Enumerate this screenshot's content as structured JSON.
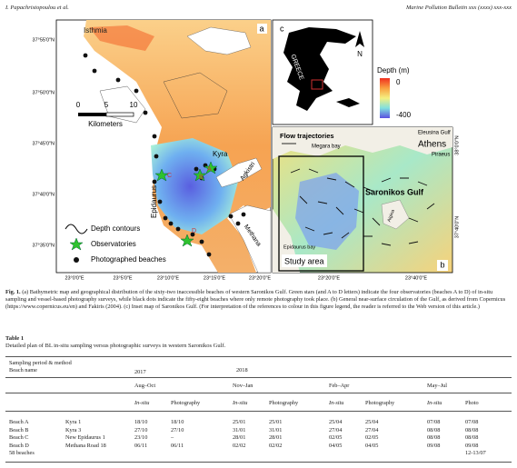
{
  "header": {
    "authors": "I. Papachristopoulou et al.",
    "journal": "Marine Pollution Bulletin xxx (xxxx) xxx-xxx"
  },
  "figure": {
    "panel_a": {
      "label": "a",
      "place": "Isthmia",
      "lat_ticks": [
        "37°55'0\"N",
        "37°50'0\"N",
        "37°45'0\"N",
        "37°40'0\"N",
        "37°35'0\"N"
      ],
      "lon_ticks": [
        "23°0'0\"E",
        "23°5'0\"E",
        "23°10'0\"E",
        "23°15'0\"E",
        "23°20'0\"E"
      ],
      "scale_ticks": [
        "0",
        "5",
        "10"
      ],
      "scale_unit": "Kilometers",
      "places": [
        "Kyra",
        "Agkistri",
        "Epidaurus",
        "Methana"
      ],
      "observatories": [
        "A",
        "B",
        "C",
        "D"
      ],
      "legend": [
        "Depth contours",
        "Observatories",
        "Photographed beaches"
      ]
    },
    "panel_b": {
      "label": "b",
      "title": "Flow trajectories",
      "places": [
        "Megara bay",
        "Eleusina Gulf",
        "Athens",
        "Piraeus",
        "Saronikos Gulf",
        "Aigina",
        "Epidaurus bay"
      ],
      "area": "Study area",
      "lon_ticks": [
        "23°20'0\"E",
        "23°40'0\"E"
      ],
      "lat_ticks": [
        "38°0'0\"N",
        "37°40'0\"N"
      ]
    },
    "panel_c": {
      "label": "c",
      "country": "GREECE",
      "north": "N"
    },
    "depth_legend": {
      "title": "Depth (m)",
      "max": "0",
      "min": "-400"
    }
  },
  "caption": {
    "label": "Fig. 1.",
    "text": "(a) Bathymetric map and geographical distribution of the sixty-two inaccessible beaches of western Saronikos Gulf. Green stars (and A to D letters) indicate the four observatories (beaches A to D) of in-situ sampling and vessel-based photography surveys, while black dots indicate the fifty-eight beaches where only remote photography took place. (b) General near-surface circulation of the Gulf, as derived from Copernicus (https://www.copernicus.eu/en) and Fakiris (2004). (c) Inset map of Saronikos Gulf. (For interpretation of the references to colour in this figure legend, the reader is referred to the Web version of this article.)"
  },
  "table": {
    "label": "Table 1",
    "title": "Detailed plan of BL in-situ sampling versus photographic surveys in western Saronikos Gulf.",
    "group_label": "Sampling period & method",
    "beach_label": "Beach name",
    "years": [
      "2017",
      "2018"
    ],
    "periods": [
      "Aug–Oct",
      "Nov–Jan",
      "Feb–Apr",
      "May–Jul"
    ],
    "methods": [
      "In-situ",
      "Photography",
      "In-situ",
      "Photography",
      "In-situ",
      "Photography",
      "In-situ",
      "Photo"
    ],
    "rows": [
      [
        "Beach A",
        "Kyra 1",
        "18/10",
        "18/10",
        "25/01",
        "25/01",
        "25/04",
        "25/04",
        "07/08",
        "07/08"
      ],
      [
        "Beach B",
        "Kyra 3",
        "27/10",
        "27/10",
        "31/01",
        "31/01",
        "27/04",
        "27/04",
        "08/08",
        "08/08"
      ],
      [
        "Beach C",
        "New Epidaurus 1",
        "23/10",
        "–",
        "28/01",
        "28/01",
        "02/05",
        "02/05",
        "08/08",
        "08/08"
      ],
      [
        "Beach D",
        "Methana Road 18",
        "06/11",
        "06/11",
        "02/02",
        "02/02",
        "04/05",
        "04/05",
        "09/08",
        "09/08"
      ],
      [
        "58 beaches",
        null,
        null,
        null,
        null,
        null,
        null,
        null,
        null,
        "12-13/07"
      ]
    ]
  }
}
